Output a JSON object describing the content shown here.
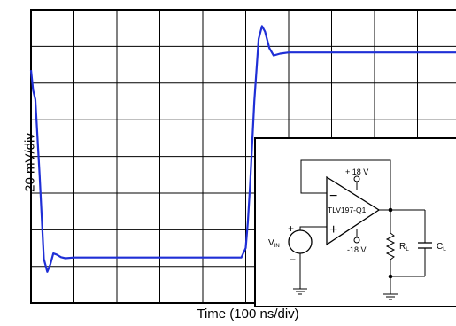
{
  "chart_data": {
    "type": "line",
    "title": "",
    "xlabel": "Time (100 ns/div)",
    "ylabel": "20 mV/div",
    "grid": true,
    "x_divisions": 10,
    "y_divisions": 8,
    "series": [
      {
        "color": "#1f2fd6",
        "points": [
          {
            "x": 0.0,
            "y": 6.35
          },
          {
            "x": 0.05,
            "y": 5.8
          },
          {
            "x": 0.1,
            "y": 5.55
          },
          {
            "x": 0.2,
            "y": 3.5
          },
          {
            "x": 0.3,
            "y": 1.2
          },
          {
            "x": 0.38,
            "y": 0.85
          },
          {
            "x": 0.45,
            "y": 1.05
          },
          {
            "x": 0.52,
            "y": 1.35
          },
          {
            "x": 0.6,
            "y": 1.32
          },
          {
            "x": 0.7,
            "y": 1.25
          },
          {
            "x": 0.8,
            "y": 1.22
          },
          {
            "x": 1.0,
            "y": 1.24
          },
          {
            "x": 2.0,
            "y": 1.24
          },
          {
            "x": 3.0,
            "y": 1.24
          },
          {
            "x": 4.0,
            "y": 1.24
          },
          {
            "x": 4.9,
            "y": 1.24
          },
          {
            "x": 5.0,
            "y": 1.5
          },
          {
            "x": 5.05,
            "y": 2.2
          },
          {
            "x": 5.1,
            "y": 3.2
          },
          {
            "x": 5.2,
            "y": 5.5
          },
          {
            "x": 5.3,
            "y": 7.2
          },
          {
            "x": 5.38,
            "y": 7.55
          },
          {
            "x": 5.45,
            "y": 7.4
          },
          {
            "x": 5.55,
            "y": 6.95
          },
          {
            "x": 5.65,
            "y": 6.75
          },
          {
            "x": 5.8,
            "y": 6.8
          },
          {
            "x": 6.0,
            "y": 6.83
          },
          {
            "x": 7.0,
            "y": 6.83
          },
          {
            "x": 8.0,
            "y": 6.83
          },
          {
            "x": 9.0,
            "y": 6.83
          },
          {
            "x": 10.0,
            "y": 6.83
          }
        ]
      }
    ]
  },
  "schematic": {
    "vplus_label": "+ 18 V",
    "vminus_label": "-18 V",
    "opamp_label": "TLV197-Q1",
    "minus_sign": "−",
    "plus_sign": "+",
    "vin_label": "V",
    "vin_sub": "IN",
    "rl_label": "R",
    "rl_sub": "L",
    "cl_label": "C",
    "cl_sub": "L",
    "source_plus": "+",
    "source_minus": "−"
  }
}
